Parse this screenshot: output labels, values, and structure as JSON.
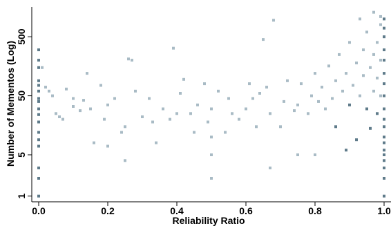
{
  "chart_data": {
    "type": "scatter",
    "title": "",
    "xlabel": "Reliability Ratio",
    "ylabel": "Number of Mementos (Log)",
    "xlim": [
      -0.02,
      1.02
    ],
    "ylim": [
      0.8,
      1600
    ],
    "y_scale": "log",
    "grid": false,
    "legend": "none",
    "x_ticks": [
      {
        "value": 0.0,
        "label": "0.0"
      },
      {
        "value": 0.2,
        "label": "0.2"
      },
      {
        "value": 0.4,
        "label": "0.4"
      },
      {
        "value": 0.6,
        "label": "0.6"
      },
      {
        "value": 0.8,
        "label": "0.8"
      },
      {
        "value": 1.0,
        "label": "1.0"
      }
    ],
    "y_ticks": [
      {
        "value": 1,
        "label": "1"
      },
      {
        "value": 5,
        "label": "5"
      },
      {
        "value": 50,
        "label": "50"
      },
      {
        "value": 500,
        "label": "500"
      }
    ],
    "colors": {
      "points_light": "#a9bbc5",
      "points_dark": "#5f7b8a",
      "axis": "#000000"
    },
    "series": [
      {
        "points": [
          [
            0.0,
            1
          ],
          [
            0.0,
            2
          ],
          [
            0.0,
            3
          ],
          [
            0.0,
            7
          ],
          [
            0.0,
            9
          ],
          [
            0.0,
            12
          ],
          [
            0.0,
            18
          ],
          [
            0.0,
            24
          ],
          [
            0.0,
            30
          ],
          [
            0.0,
            40
          ],
          [
            0.0,
            45
          ],
          [
            0.0,
            60
          ],
          [
            0.0,
            75
          ],
          [
            0.0,
            90
          ],
          [
            0.0,
            150
          ],
          [
            0.0,
            200
          ],
          [
            0.0,
            300
          ],
          [
            0.01,
            150
          ],
          [
            0.02,
            70
          ],
          [
            0.03,
            60
          ],
          [
            0.04,
            50
          ],
          [
            0.05,
            25
          ],
          [
            0.06,
            22
          ],
          [
            0.07,
            20
          ],
          [
            0.08,
            65
          ],
          [
            0.1,
            45
          ],
          [
            0.1,
            33
          ],
          [
            0.12,
            28
          ],
          [
            0.13,
            42
          ],
          [
            0.14,
            120
          ],
          [
            0.15,
            30
          ],
          [
            0.16,
            8
          ],
          [
            0.18,
            75
          ],
          [
            0.19,
            20
          ],
          [
            0.2,
            35
          ],
          [
            0.2,
            7
          ],
          [
            0.22,
            45
          ],
          [
            0.24,
            12
          ],
          [
            0.25,
            15
          ],
          [
            0.25,
            4
          ],
          [
            0.26,
            210
          ],
          [
            0.27,
            200
          ],
          [
            0.28,
            60
          ],
          [
            0.3,
            22
          ],
          [
            0.32,
            45
          ],
          [
            0.33,
            18
          ],
          [
            0.34,
            8
          ],
          [
            0.36,
            30
          ],
          [
            0.38,
            20
          ],
          [
            0.39,
            320
          ],
          [
            0.4,
            25
          ],
          [
            0.41,
            55
          ],
          [
            0.42,
            95
          ],
          [
            0.44,
            25
          ],
          [
            0.45,
            12
          ],
          [
            0.46,
            35
          ],
          [
            0.48,
            80
          ],
          [
            0.49,
            18
          ],
          [
            0.5,
            10
          ],
          [
            0.5,
            5
          ],
          [
            0.5,
            2
          ],
          [
            0.5,
            30
          ],
          [
            0.52,
            60
          ],
          [
            0.54,
            12
          ],
          [
            0.55,
            45
          ],
          [
            0.56,
            25
          ],
          [
            0.58,
            20
          ],
          [
            0.6,
            30
          ],
          [
            0.61,
            80
          ],
          [
            0.62,
            45
          ],
          [
            0.63,
            15
          ],
          [
            0.64,
            55
          ],
          [
            0.65,
            450
          ],
          [
            0.66,
            70
          ],
          [
            0.67,
            3
          ],
          [
            0.67,
            25
          ],
          [
            0.68,
            950
          ],
          [
            0.7,
            15
          ],
          [
            0.71,
            40
          ],
          [
            0.72,
            90
          ],
          [
            0.74,
            28
          ],
          [
            0.75,
            5
          ],
          [
            0.75,
            35
          ],
          [
            0.76,
            80
          ],
          [
            0.78,
            25
          ],
          [
            0.79,
            50
          ],
          [
            0.8,
            5
          ],
          [
            0.8,
            120
          ],
          [
            0.81,
            40
          ],
          [
            0.82,
            70
          ],
          [
            0.83,
            30
          ],
          [
            0.84,
            160
          ],
          [
            0.85,
            45
          ],
          [
            0.86,
            90
          ],
          [
            0.86,
            15
          ],
          [
            0.87,
            250
          ],
          [
            0.88,
            60
          ],
          [
            0.89,
            6
          ],
          [
            0.89,
            120
          ],
          [
            0.9,
            35
          ],
          [
            0.9,
            400
          ],
          [
            0.91,
            75
          ],
          [
            0.92,
            180
          ],
          [
            0.92,
            9
          ],
          [
            0.93,
            50
          ],
          [
            0.93,
            1000
          ],
          [
            0.94,
            110
          ],
          [
            0.94,
            300
          ],
          [
            0.95,
            30
          ],
          [
            0.95,
            600
          ],
          [
            0.96,
            150
          ],
          [
            0.96,
            14
          ],
          [
            0.97,
            250
          ],
          [
            0.97,
            60
          ],
          [
            0.97,
            1300
          ],
          [
            0.98,
            400
          ],
          [
            0.98,
            100
          ],
          [
            0.98,
            25
          ],
          [
            0.99,
            800
          ],
          [
            0.99,
            200
          ],
          [
            0.99,
            50
          ],
          [
            0.99,
            1100
          ],
          [
            1.0,
            1
          ],
          [
            1.0,
            2
          ],
          [
            1.0,
            3
          ],
          [
            1.0,
            4
          ],
          [
            1.0,
            5
          ],
          [
            1.0,
            6
          ],
          [
            1.0,
            8
          ],
          [
            1.0,
            10
          ],
          [
            1.0,
            15
          ],
          [
            1.0,
            20
          ],
          [
            1.0,
            30
          ],
          [
            1.0,
            50
          ],
          [
            1.0,
            80
          ],
          [
            1.0,
            120
          ],
          [
            1.0,
            200
          ],
          [
            1.0,
            300
          ],
          [
            1.0,
            500
          ],
          [
            1.0,
            700
          ],
          [
            1.0,
            1000
          ]
        ]
      }
    ]
  }
}
